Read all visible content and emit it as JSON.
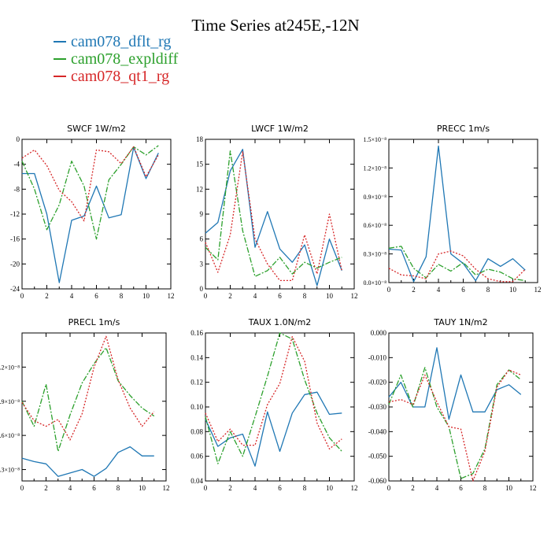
{
  "figure": {
    "title": "Time Series at245E,-12N",
    "colors": {
      "dflt": "#1f77b4",
      "expldiff": "#2ca02c",
      "qt1": "#d62728"
    },
    "legend": [
      {
        "name": "cam078_dflt_rg",
        "color": "#1f77b4"
      },
      {
        "name": "cam078_expldiff",
        "color": "#2ca02c"
      },
      {
        "name": "cam078_qt1_rg",
        "color": "#d62728"
      }
    ]
  },
  "chart_data": [
    {
      "type": "line",
      "title": "SWCF   1W/m2",
      "x": [
        0,
        1,
        2,
        3,
        4,
        5,
        6,
        7,
        8,
        9,
        10,
        11
      ],
      "xlim": [
        0,
        12
      ],
      "ylim": [
        -24,
        0
      ],
      "xticks": [
        0,
        2,
        4,
        6,
        8,
        10,
        12
      ],
      "yticks": [
        0,
        -4,
        -8,
        -12,
        -16,
        -20,
        -24
      ],
      "yticklabels": [
        "0",
        "-4",
        "-8",
        "-12",
        "-16",
        "-20",
        "-24"
      ],
      "series": [
        {
          "name": "cam078_dflt_rg",
          "values": [
            -5.5,
            -5.5,
            -12,
            -23,
            -13,
            -12.3,
            -7.5,
            -12.6,
            -12.1,
            -1.3,
            -6.3,
            -2.2
          ]
        },
        {
          "name": "cam078_expldiff",
          "values": [
            -3.5,
            -8,
            -14.5,
            -10.5,
            -3.5,
            -7.5,
            -16,
            -6.5,
            -4,
            -1.2,
            -2.5,
            -1
          ]
        },
        {
          "name": "cam078_qt1_rg",
          "values": [
            -3,
            -1.7,
            -4.2,
            -8.2,
            -10,
            -13.1,
            -1.7,
            -2,
            -3.9,
            -1.2,
            -6,
            -2.5
          ]
        }
      ]
    },
    {
      "type": "line",
      "title": "LWCF   1W/m2",
      "x": [
        0,
        1,
        2,
        3,
        4,
        5,
        6,
        7,
        8,
        9,
        10,
        11
      ],
      "xlim": [
        0,
        12
      ],
      "ylim": [
        0,
        18
      ],
      "xticks": [
        0,
        2,
        4,
        6,
        8,
        10,
        12
      ],
      "yticks": [
        0,
        3,
        6,
        9,
        12,
        15,
        18
      ],
      "yticklabels": [
        "0",
        "3",
        "6",
        "9",
        "12",
        "15",
        "18"
      ],
      "series": [
        {
          "name": "cam078_dflt_rg",
          "values": [
            6.7,
            8,
            14.2,
            16.8,
            5,
            9.3,
            4.8,
            3.2,
            5.3,
            0.4,
            6,
            2.2
          ]
        },
        {
          "name": "cam078_expldiff",
          "values": [
            5,
            3.5,
            16.6,
            7,
            1.5,
            2.2,
            3.8,
            1.8,
            3.2,
            2.5,
            3.2,
            3.8
          ]
        },
        {
          "name": "cam078_qt1_rg",
          "values": [
            5.6,
            2,
            6.5,
            16.5,
            6,
            3,
            1,
            1,
            6.5,
            1.8,
            9,
            2.2
          ]
        }
      ]
    },
    {
      "type": "line",
      "title": "PRECC   1m/s",
      "x": [
        0,
        1,
        2,
        3,
        4,
        5,
        6,
        7,
        8,
        9,
        10,
        11
      ],
      "xlim": [
        0,
        12
      ],
      "ylim": [
        0,
        1.5e-08
      ],
      "xticks": [
        0,
        2,
        4,
        6,
        8,
        10,
        12
      ],
      "yticks": [
        0,
        3e-09,
        6e-09,
        9e-09,
        1.2e-08,
        1.5e-08
      ],
      "yticklabels": [
        "0.0×10⁻⁸",
        "0.3×10⁻⁸",
        "0.6×10⁻⁸",
        "0.9×10⁻⁸",
        "1.2×10⁻⁸",
        "1.5×10⁻⁸"
      ],
      "series": [
        {
          "name": "cam078_dflt_rg",
          "values": [
            3.5e-09,
            3.4e-09,
            1e-10,
            2.7e-09,
            1.43e-08,
            3e-09,
            2e-09,
            2e-10,
            2.5e-09,
            1.7e-09,
            2.5e-09,
            1.3e-09
          ]
        },
        {
          "name": "cam078_expldiff",
          "values": [
            3.6e-09,
            3.8e-09,
            1.5e-09,
            5e-10,
            1.9e-09,
            1.2e-09,
            2.1e-09,
            8e-10,
            1.4e-09,
            1.1e-09,
            4e-10,
            2e-10
          ]
        },
        {
          "name": "cam078_qt1_rg",
          "values": [
            1.5e-09,
            8e-10,
            7e-10,
            4e-10,
            3e-09,
            3.3e-09,
            2.8e-09,
            1.4e-09,
            4e-10,
            1e-10,
            1e-10,
            1.4e-09
          ]
        }
      ]
    },
    {
      "type": "line",
      "title": "PRECL   1m/s",
      "x": [
        0,
        1,
        2,
        3,
        4,
        5,
        6,
        7,
        8,
        9,
        10,
        11
      ],
      "xlim": [
        0,
        12
      ],
      "ylim": [
        2e-09,
        1.5e-08
      ],
      "xticks": [
        0,
        2,
        4,
        6,
        8,
        10,
        12
      ],
      "yticks": [
        3e-09,
        6e-09,
        9e-09,
        1.2e-08
      ],
      "yticklabels": [
        "0.3×10⁻⁸",
        "0.6×10⁻⁸",
        "0.9×10⁻⁸",
        "1.2×10⁻⁸"
      ],
      "series": [
        {
          "name": "cam078_dflt_rg",
          "values": [
            4e-09,
            3.7e-09,
            3.5e-09,
            2.4e-09,
            2.7e-09,
            3e-09,
            2.4e-09,
            3.1e-09,
            4.5e-09,
            5e-09,
            4.2e-09,
            4.2e-09
          ]
        },
        {
          "name": "cam078_expldiff",
          "values": [
            9e-09,
            6.8e-09,
            1.05e-08,
            4.6e-09,
            7.8e-09,
            1.06e-08,
            1.23e-08,
            1.37e-08,
            1.08e-08,
            9.5e-09,
            8.4e-09,
            7.7e-09
          ]
        },
        {
          "name": "cam078_qt1_rg",
          "values": [
            8.9e-09,
            7.3e-09,
            6.8e-09,
            7.4e-09,
            5.6e-09,
            7.9e-09,
            1.2e-08,
            1.47e-08,
            1.09e-08,
            8.4e-09,
            6.8e-09,
            8.1e-09
          ]
        }
      ]
    },
    {
      "type": "line",
      "title": "TAUX   1.0N/m2",
      "x": [
        0,
        1,
        2,
        3,
        4,
        5,
        6,
        7,
        8,
        9,
        10,
        11
      ],
      "xlim": [
        0,
        12
      ],
      "ylim": [
        0.04,
        0.16
      ],
      "xticks": [
        0,
        2,
        4,
        6,
        8,
        10,
        12
      ],
      "yticks": [
        0.04,
        0.06,
        0.08,
        0.1,
        0.12,
        0.14,
        0.16
      ],
      "yticklabels": [
        "0.04",
        "0.06",
        "0.08",
        "0.10",
        "0.12",
        "0.14",
        "0.16"
      ],
      "series": [
        {
          "name": "cam078_dflt_rg",
          "values": [
            0.09,
            0.068,
            0.075,
            0.078,
            0.052,
            0.096,
            0.064,
            0.095,
            0.11,
            0.112,
            0.094,
            0.095
          ]
        },
        {
          "name": "cam078_expldiff",
          "values": [
            0.092,
            0.054,
            0.08,
            0.06,
            0.092,
            0.125,
            0.16,
            0.155,
            0.122,
            0.095,
            0.075,
            0.064
          ]
        },
        {
          "name": "cam078_qt1_rg",
          "values": [
            0.095,
            0.072,
            0.082,
            0.069,
            0.069,
            0.102,
            0.119,
            0.157,
            0.137,
            0.087,
            0.066,
            0.074
          ]
        }
      ]
    },
    {
      "type": "line",
      "title": "TAUY   1N/m2",
      "x": [
        0,
        1,
        2,
        3,
        4,
        5,
        6,
        7,
        8,
        9,
        10,
        11
      ],
      "xlim": [
        0,
        12
      ],
      "ylim": [
        -0.06,
        0.0
      ],
      "xticks": [
        0,
        2,
        4,
        6,
        8,
        10,
        12
      ],
      "yticks": [
        0,
        -0.01,
        -0.02,
        -0.03,
        -0.04,
        -0.05,
        -0.06
      ],
      "yticklabels": [
        "0.000",
        "-0.010",
        "-0.020",
        "-0.030",
        "-0.040",
        "-0.050",
        "-0.060"
      ],
      "series": [
        {
          "name": "cam078_dflt_rg",
          "values": [
            -0.026,
            -0.02,
            -0.03,
            -0.03,
            -0.006,
            -0.035,
            -0.017,
            -0.032,
            -0.032,
            -0.023,
            -0.021,
            -0.025
          ]
        },
        {
          "name": "cam078_expldiff",
          "values": [
            -0.029,
            -0.017,
            -0.03,
            -0.014,
            -0.03,
            -0.038,
            -0.059,
            -0.057,
            -0.047,
            -0.021,
            -0.015,
            -0.019
          ]
        },
        {
          "name": "cam078_qt1_rg",
          "values": [
            -0.028,
            -0.027,
            -0.029,
            -0.017,
            -0.028,
            -0.038,
            -0.039,
            -0.06,
            -0.048,
            -0.022,
            -0.015,
            -0.017
          ]
        }
      ]
    }
  ]
}
